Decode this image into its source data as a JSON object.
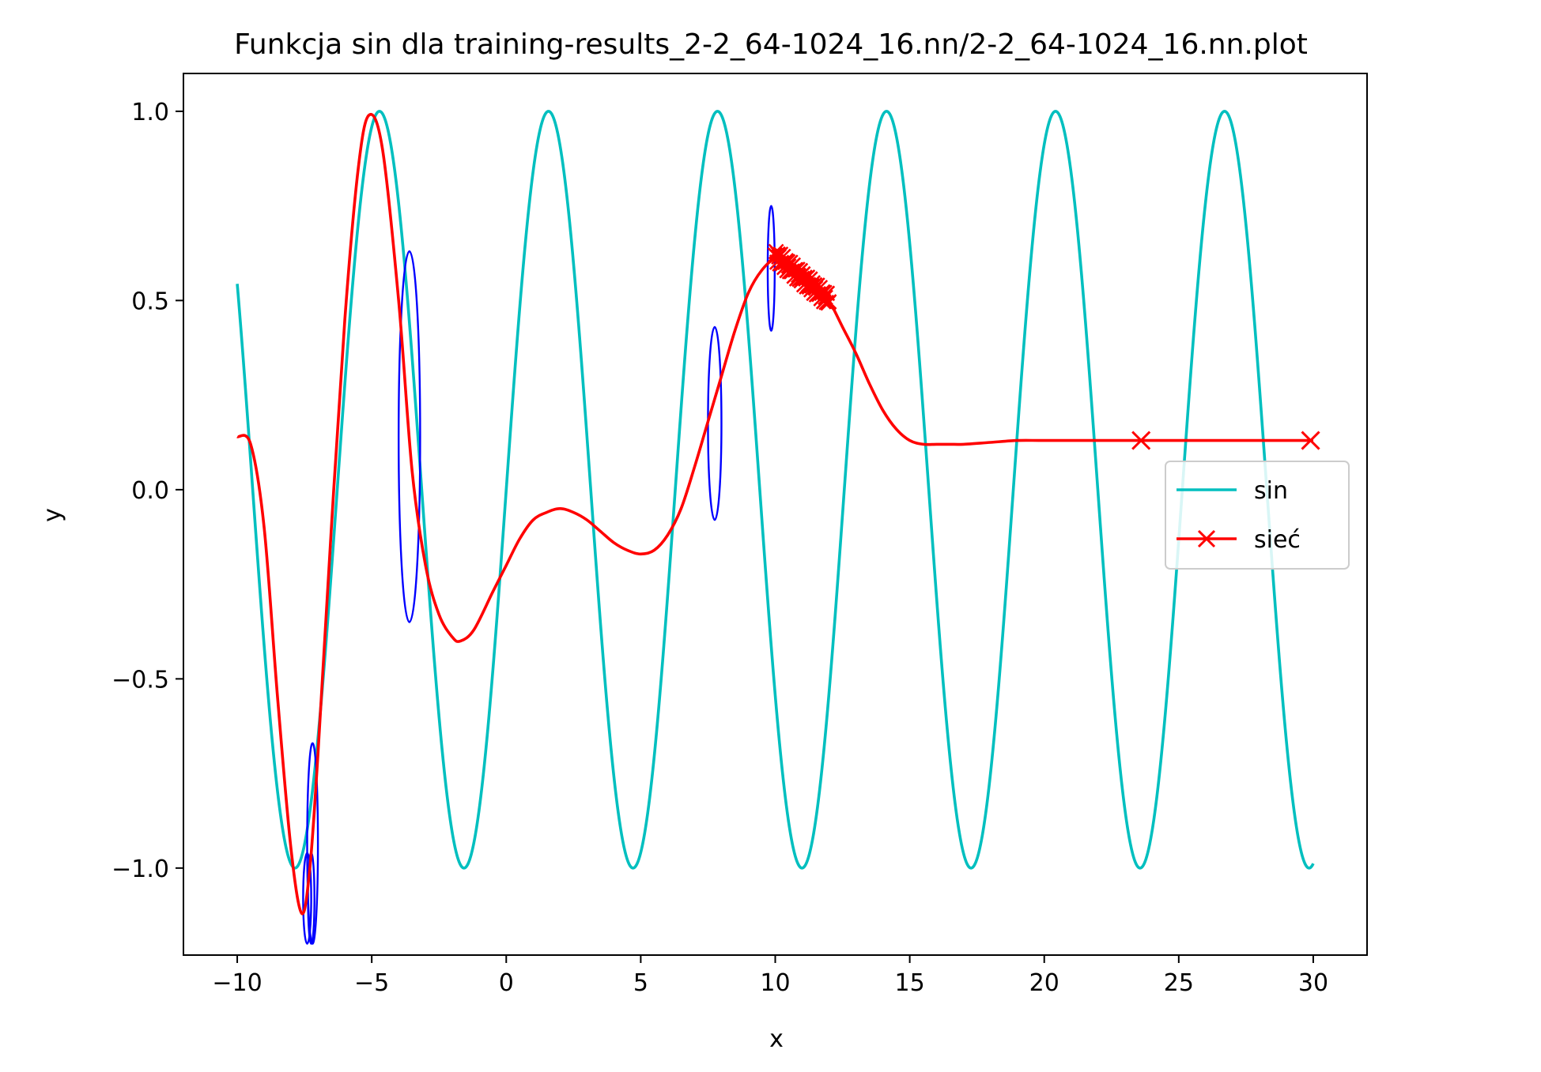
{
  "chart_data": {
    "type": "line",
    "title": "Funkcja sin dla training-results_2-2_64-1024_16.nn/2-2_64-1024_16.nn.plot",
    "xlabel": "x",
    "ylabel": "y",
    "xlim": [
      -12,
      32
    ],
    "ylim": [
      -1.23,
      1.1
    ],
    "xticks": [
      -10,
      -5,
      0,
      5,
      10,
      15,
      20,
      25,
      30
    ],
    "xtick_labels": [
      "−10",
      "−5",
      "0",
      "5",
      "10",
      "15",
      "20",
      "25",
      "30"
    ],
    "yticks": [
      -1.0,
      -0.5,
      0.0,
      0.5,
      1.0
    ],
    "ytick_labels": [
      "−1.0",
      "−0.5",
      "0.0",
      "0.5",
      "1.0"
    ],
    "grid": false,
    "legend_placement": "center-right",
    "series": [
      {
        "name": "sin",
        "color": "#00bfbf",
        "marker": "none",
        "function": "sin(x)",
        "x_range": [
          -10,
          30
        ]
      },
      {
        "name": "sieć",
        "color": "#ff0000",
        "marker": "x",
        "x": [
          -10,
          -9.5,
          -9,
          -8.5,
          -8,
          -7.6,
          -7.3,
          -7,
          -6.5,
          -6,
          -5.5,
          -5.1,
          -4.6,
          -4,
          -3.5,
          -3,
          -2.5,
          -2,
          -1.7,
          -1.2,
          -0.5,
          0,
          0.5,
          1,
          1.5,
          2,
          2.5,
          3,
          3.5,
          4,
          4.5,
          5,
          5.5,
          6,
          6.5,
          7,
          7.5,
          8,
          8.5,
          9,
          9.5,
          10,
          10.5,
          11,
          11.5,
          12,
          12.5,
          13,
          13.5,
          14,
          14.5,
          15,
          15.5,
          16,
          16.5,
          17,
          18,
          19,
          20,
          22,
          24,
          26,
          28,
          30
        ],
        "y": [
          0.14,
          0.12,
          -0.1,
          -0.55,
          -0.95,
          -1.12,
          -1.0,
          -0.7,
          -0.1,
          0.45,
          0.85,
          0.99,
          0.9,
          0.5,
          0.05,
          -0.2,
          -0.33,
          -0.39,
          -0.4,
          -0.37,
          -0.27,
          -0.2,
          -0.13,
          -0.08,
          -0.06,
          -0.05,
          -0.06,
          -0.08,
          -0.11,
          -0.14,
          -0.16,
          -0.17,
          -0.16,
          -0.12,
          -0.05,
          0.06,
          0.18,
          0.3,
          0.42,
          0.52,
          0.58,
          0.61,
          0.6,
          0.58,
          0.55,
          0.5,
          0.43,
          0.36,
          0.28,
          0.21,
          0.16,
          0.13,
          0.12,
          0.12,
          0.12,
          0.12,
          0.125,
          0.13,
          0.13,
          0.13,
          0.13,
          0.13,
          0.13,
          0.13
        ],
        "marker_x": [
          23.6,
          29.9
        ],
        "marker_y": [
          0.13,
          0.13
        ]
      }
    ],
    "annotations": [
      {
        "kind": "ellipse",
        "color": "#0000ff",
        "cx": -3.6,
        "cy": 0.14,
        "rx": 0.4,
        "ry": 0.49
      },
      {
        "kind": "ellipse",
        "color": "#0000ff",
        "cx": 7.75,
        "cy": 0.175,
        "rx": 0.25,
        "ry": 0.255
      },
      {
        "kind": "ellipse",
        "color": "#0000ff",
        "cx": 9.85,
        "cy": 0.585,
        "rx": 0.13,
        "ry": 0.165
      },
      {
        "kind": "ellipse",
        "color": "#0000ff",
        "cx": -7.2,
        "cy": -0.935,
        "rx": 0.2,
        "ry": 0.265
      },
      {
        "kind": "ellipse",
        "color": "#0000ff",
        "cx": -7.4,
        "cy": -1.08,
        "rx": 0.15,
        "ry": 0.12
      },
      {
        "kind": "ellipse",
        "color": "#0000ff",
        "cx": -7.25,
        "cy": -1.08,
        "rx": 0.12,
        "ry": 0.12
      }
    ],
    "cluster": {
      "color": "#ff0000",
      "x_range": [
        10,
        12
      ],
      "y_start": 0.62,
      "y_end": 0.5
    }
  }
}
